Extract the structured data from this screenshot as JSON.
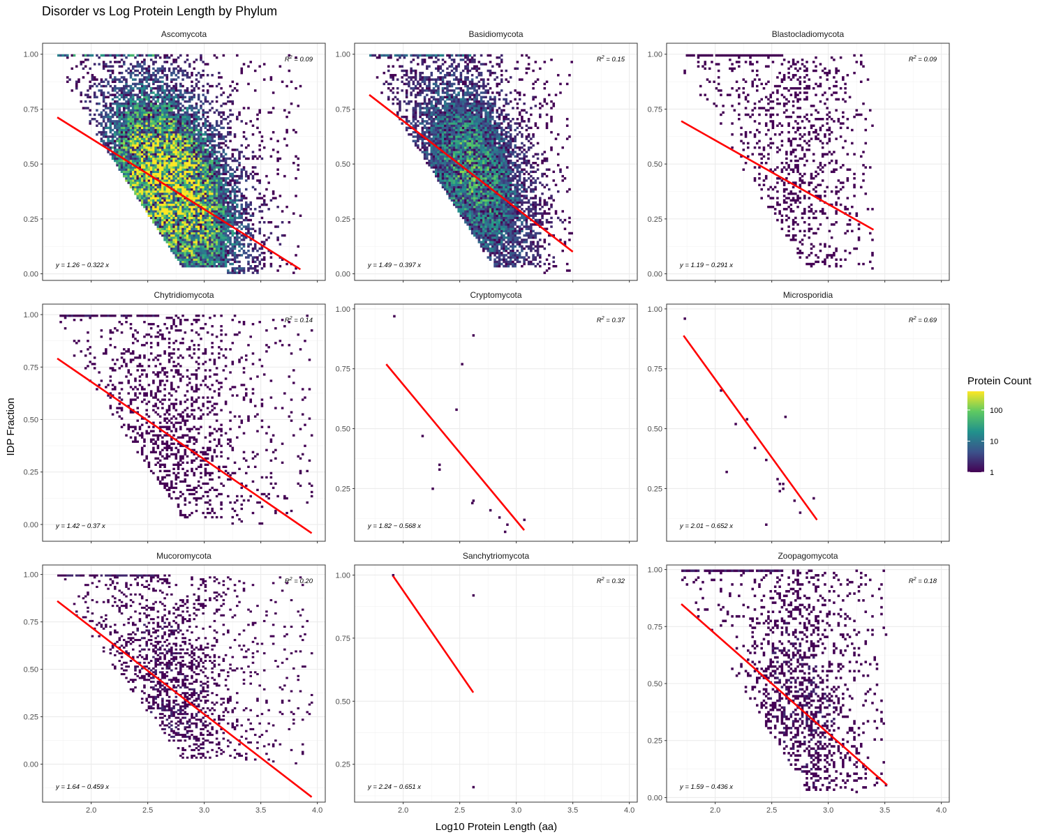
{
  "chart_data": {
    "type": "heatmap",
    "title": "Disorder vs Log Protein Length by Phylum",
    "xlabel": "Log10 Protein Length (aa)",
    "ylabel": "IDP Fraction",
    "xlim": [
      1.57,
      4.07
    ],
    "x_ticks": [
      "2.0",
      "2.5",
      "3.0",
      "3.5",
      "4.0"
    ],
    "x_tick_values": [
      2.0,
      2.5,
      3.0,
      3.5,
      4.0
    ],
    "grid": true,
    "fit_line_color": "#ff0000",
    "legend": {
      "title": "Protein Count",
      "scale": "log",
      "ticks": [
        "1",
        "10",
        "100"
      ],
      "tick_values": [
        1,
        10,
        100
      ],
      "max": 400,
      "palette": "viridis",
      "placement": "right"
    },
    "panels": [
      {
        "name": "Ascomycota",
        "equation": "y = 1.26 − 0.322 x",
        "r2_value": "= 0.09",
        "ylim": [
          -0.03,
          1.05
        ],
        "y_ticks": [
          "0.00",
          "0.25",
          "0.50",
          "0.75",
          "1.00"
        ],
        "y_tick_values": [
          0,
          0.25,
          0.5,
          0.75,
          1.0
        ],
        "fit": {
          "slope": -0.322,
          "intercept": 1.26,
          "x_range": [
            1.7,
            3.85
          ]
        },
        "density": {
          "xrange": [
            1.7,
            3.85
          ],
          "center": 2.7,
          "spread": 0.5,
          "noise": 0.06,
          "intensity": 1.0
        }
      },
      {
        "name": "Basidiomycota",
        "equation": "y = 1.49 − 0.397 x",
        "r2_value": "= 0.15",
        "ylim": [
          -0.03,
          1.05
        ],
        "y_ticks": [
          "0.00",
          "0.25",
          "0.50",
          "0.75",
          "1.00"
        ],
        "y_tick_values": [
          0,
          0.25,
          0.5,
          0.75,
          1.0
        ],
        "fit": {
          "slope": -0.397,
          "intercept": 1.49,
          "x_range": [
            1.7,
            3.5
          ]
        },
        "density": {
          "xrange": [
            1.7,
            3.5
          ],
          "center": 2.6,
          "spread": 0.45,
          "noise": 0.06,
          "intensity": 0.7
        }
      },
      {
        "name": "Blastocladiomycota",
        "equation": "y = 1.19 − 0.291 x",
        "r2_value": "= 0.09",
        "ylim": [
          -0.03,
          1.05
        ],
        "y_ticks": [
          "0.00",
          "0.25",
          "0.50",
          "0.75",
          "1.00"
        ],
        "y_tick_values": [
          0,
          0.25,
          0.5,
          0.75,
          1.0
        ],
        "fit": {
          "slope": -0.291,
          "intercept": 1.19,
          "x_range": [
            1.7,
            3.4
          ]
        },
        "density": {
          "xrange": [
            1.7,
            3.4
          ],
          "center": 2.7,
          "spread": 0.4,
          "noise": 0.1,
          "intensity": 0.02
        }
      },
      {
        "name": "Chytridiomycota",
        "equation": "y = 1.42 − 0.37 x",
        "r2_value": "= 0.14",
        "ylim": [
          -0.08,
          1.05
        ],
        "y_ticks": [
          "0.00",
          "0.25",
          "0.50",
          "0.75",
          "1.00"
        ],
        "y_tick_values": [
          0,
          0.25,
          0.5,
          0.75,
          1.0
        ],
        "fit": {
          "slope": -0.37,
          "intercept": 1.42,
          "x_range": [
            1.7,
            3.95
          ]
        },
        "density": {
          "xrange": [
            1.7,
            3.95
          ],
          "center": 2.7,
          "spread": 0.45,
          "noise": 0.08,
          "intensity": 0.08
        }
      },
      {
        "name": "Cryptomycota",
        "equation": "y = 1.82 − 0.568 x",
        "r2_value": "= 0.37",
        "ylim": [
          0.03,
          1.02
        ],
        "y_ticks": [
          "0.25",
          "0.50",
          "0.75",
          "1.00"
        ],
        "y_tick_values": [
          0.25,
          0.5,
          0.75,
          1.0
        ],
        "fit": {
          "slope": -0.568,
          "intercept": 1.82,
          "x_range": [
            1.85,
            3.07
          ]
        },
        "points": [
          [
            1.92,
            0.97
          ],
          [
            2.62,
            0.89
          ],
          [
            2.52,
            0.77
          ],
          [
            2.47,
            0.58
          ],
          [
            2.17,
            0.47
          ],
          [
            2.32,
            0.35
          ],
          [
            2.32,
            0.33
          ],
          [
            2.26,
            0.25
          ],
          [
            2.62,
            0.2
          ],
          [
            2.61,
            0.19
          ],
          [
            2.77,
            0.16
          ],
          [
            2.85,
            0.13
          ],
          [
            3.07,
            0.12
          ],
          [
            2.92,
            0.1
          ],
          [
            2.9,
            0.07
          ]
        ]
      },
      {
        "name": "Microsporidia",
        "equation": "y = 2.01 − 0.652 x",
        "r2_value": "= 0.69",
        "ylim": [
          0.03,
          1.02
        ],
        "y_ticks": [
          "0.25",
          "0.50",
          "0.75",
          "1.00"
        ],
        "y_tick_values": [
          0.25,
          0.5,
          0.75,
          1.0
        ],
        "fit": {
          "slope": -0.652,
          "intercept": 2.01,
          "x_range": [
            1.72,
            2.9
          ]
        },
        "points": [
          [
            1.73,
            0.96
          ],
          [
            2.05,
            0.66
          ],
          [
            2.18,
            0.52
          ],
          [
            2.28,
            0.54
          ],
          [
            2.62,
            0.55
          ],
          [
            2.35,
            0.42
          ],
          [
            2.45,
            0.37
          ],
          [
            2.1,
            0.32
          ],
          [
            2.55,
            0.29
          ],
          [
            2.57,
            0.27
          ],
          [
            2.6,
            0.27
          ],
          [
            2.6,
            0.25
          ],
          [
            2.57,
            0.24
          ],
          [
            2.7,
            0.2
          ],
          [
            2.87,
            0.21
          ],
          [
            2.75,
            0.15
          ],
          [
            2.45,
            0.1
          ]
        ]
      },
      {
        "name": "Mucoromycota",
        "equation": "y = 1.64 − 0.459 x",
        "r2_value": "= 0.20",
        "ylim": [
          -0.2,
          1.05
        ],
        "y_ticks": [
          "0.00",
          "0.25",
          "0.50",
          "0.75",
          "1.00"
        ],
        "y_tick_values": [
          0,
          0.25,
          0.5,
          0.75,
          1.0
        ],
        "fit": {
          "slope": -0.459,
          "intercept": 1.64,
          "x_range": [
            1.7,
            3.95
          ]
        },
        "density": {
          "xrange": [
            1.7,
            3.95
          ],
          "center": 2.7,
          "spread": 0.45,
          "noise": 0.08,
          "intensity": 0.12
        }
      },
      {
        "name": "Sanchytriomycota",
        "equation": "y = 2.24 − 0.651 x",
        "r2_value": "= 0.32",
        "ylim": [
          0.1,
          1.04
        ],
        "y_ticks": [
          "0.25",
          "0.50",
          "0.75",
          "1.00"
        ],
        "y_tick_values": [
          0.25,
          0.5,
          0.75,
          1.0
        ],
        "fit": {
          "slope": -0.651,
          "intercept": 2.24,
          "x_range": [
            1.91,
            2.62
          ]
        },
        "points": [
          [
            1.91,
            1.0
          ],
          [
            2.62,
            0.92
          ],
          [
            2.62,
            0.16
          ]
        ]
      },
      {
        "name": "Zoopagomycota",
        "equation": "y = 1.59 − 0.436 x",
        "r2_value": "= 0.18",
        "ylim": [
          -0.02,
          1.02
        ],
        "y_ticks": [
          "0.00",
          "0.25",
          "0.50",
          "0.75",
          "1.00"
        ],
        "y_tick_values": [
          0,
          0.25,
          0.5,
          0.75,
          1.0
        ],
        "fit": {
          "slope": -0.436,
          "intercept": 1.59,
          "x_range": [
            1.7,
            3.52
          ]
        },
        "density": {
          "xrange": [
            1.7,
            3.52
          ],
          "center": 2.75,
          "spread": 0.4,
          "noise": 0.08,
          "intensity": 0.12
        }
      }
    ]
  }
}
